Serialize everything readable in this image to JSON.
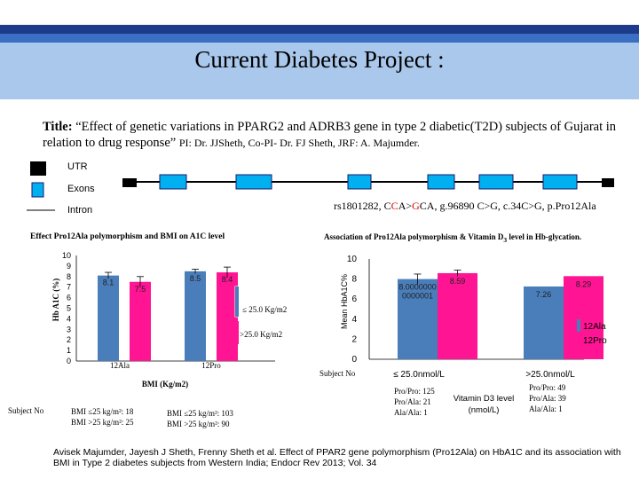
{
  "header": {
    "title": "Current Diabetes Project :",
    "colors": {
      "dark_blue": "#1e3a8a",
      "mid_blue": "#3a6fc4",
      "light_blue": "#a9c8ec"
    }
  },
  "description": {
    "lead": "Title:",
    "text": "“Effect of genetic variations in PPARG2 and ADRB3 gene in type 2 diabetic(T2D) subjects of Gujarat in relation to drug response”",
    "pi": "PI: Dr. JJSheth, Co-PI- Dr. FJ Sheth, JRF: A. Majumder."
  },
  "gene_diagram": {
    "legend": {
      "utr": "UTR",
      "exons": "Exons",
      "intron": "Intron"
    },
    "snp_prefix": "rs1801282, C",
    "snp_c1": "C",
    "snp_mid": "A>",
    "snp_g": "G",
    "snp_suffix": "CA, g.96890 C>G, c.34C>G, p.Pro12Ala",
    "colors": {
      "exon": "#00b0f0",
      "utr": "#000000"
    }
  },
  "chart_data": [
    {
      "type": "bar",
      "title": "Effect Pro12Ala polymorphism and BMI on A1C level",
      "ylabel": "Hb A1C (%)",
      "xlabel": "BMI (Kg/m2)",
      "categories": [
        "12Ala",
        "12Pro"
      ],
      "ylim": [
        0,
        10
      ],
      "yticks": [
        "0",
        "1",
        "2",
        "3",
        "4",
        "5",
        "6",
        "7",
        "8",
        "9",
        "10"
      ],
      "series": [
        {
          "name": "≤ 25.0 Kg/m2",
          "values": [
            8.1,
            8.5
          ],
          "labels": [
            "8.1",
            "8.5"
          ],
          "errors": [
            0.3,
            0.2
          ],
          "color": "#4a7ebb"
        },
        {
          "name": ">25.0 Kg/m2",
          "values": [
            7.5,
            8.4
          ],
          "labels": [
            "7.5",
            "8.4"
          ],
          "errors": [
            0.5,
            0.5
          ],
          "color": "#ff1493"
        }
      ],
      "subject_label": "Subject No",
      "subject_rows": [
        [
          "BMI ≤25 kg/m²: 18",
          "BMI >25 kg/m²: 25"
        ],
        [
          "BMI ≤25 kg/m²: 103",
          "BMI >25 kg/m²: 90"
        ]
      ]
    },
    {
      "type": "bar",
      "title": "Association of Pro12Ala polymorphism & Vitamin D",
      "title_sub": "3",
      "title_end": " level in Hb-glycation.",
      "ylabel": "Mean HbA1C%",
      "xlabel_line1": "Vitamin D3 level",
      "xlabel_line2": "(nmol/L)",
      "categories": [
        "≤ 25.0nmol/L",
        ">25.0nmol/L"
      ],
      "ylim": [
        0,
        10
      ],
      "yticks": [
        "0",
        "2",
        "4",
        "6",
        "8",
        "10"
      ],
      "series": [
        {
          "name": "12Ala",
          "values": [
            8.0,
            7.26
          ],
          "labels": [
            "8.0000000\n0000001",
            "7.26"
          ],
          "errors": [
            0.5,
            0
          ],
          "color": "#4a7ebb"
        },
        {
          "name": "12Pro",
          "values": [
            8.59,
            8.29
          ],
          "labels": [
            "8.59",
            "8.29"
          ],
          "errors": [
            0.3,
            0
          ],
          "color": "#ff1493"
        }
      ],
      "subject_label": "Subject No",
      "subject_rows": [
        [
          "Pro/Pro: 125",
          "Pro/Ala: 21",
          "Ala/Ala: 1"
        ],
        [
          "Pro/Pro: 49",
          "Pro/Ala: 39",
          "Ala/Ala: 1"
        ]
      ]
    }
  ],
  "citation": "Avisek Majumder, Jayesh J Sheth, Frenny Sheth et al. Effect of PPAR2 gene polymorphism (Pro12Ala) on HbA1C and its association with BMI in Type 2 diabetes subjects from Western India; Endocr Rev 2013; Vol. 34"
}
